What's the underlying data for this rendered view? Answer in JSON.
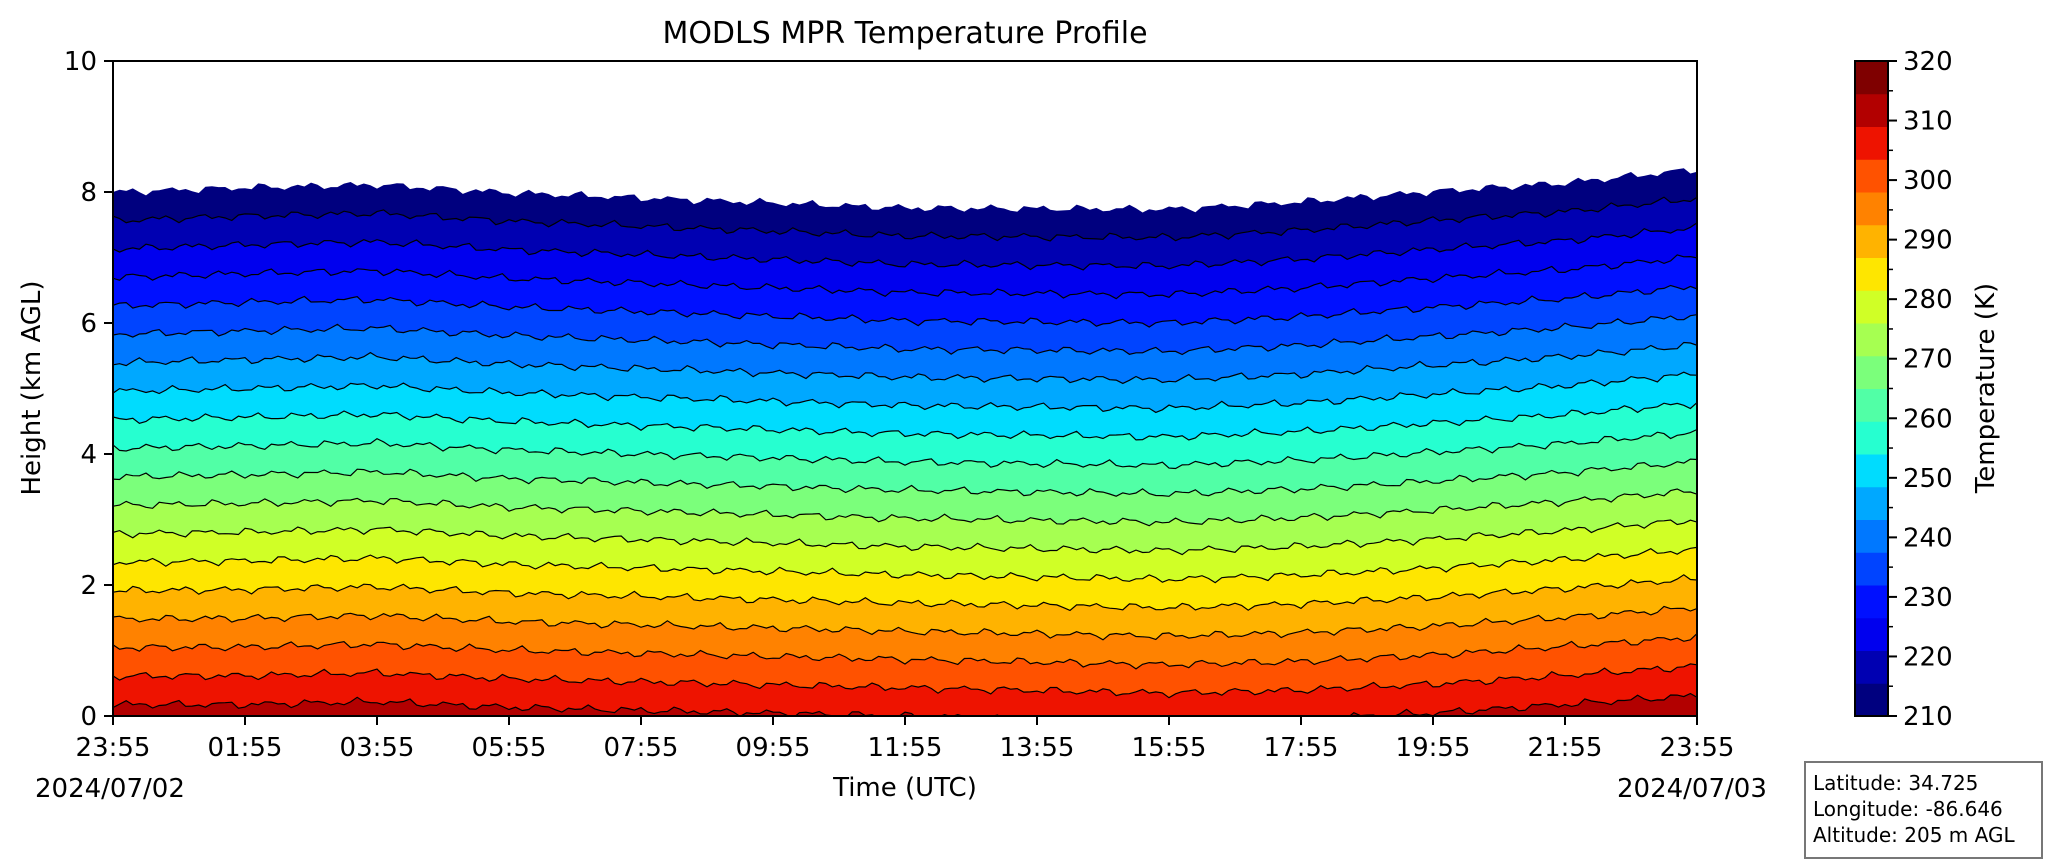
{
  "chart_data": {
    "type": "heatmap",
    "title": "MODLS MPR Temperature Profile",
    "xlabel": "Time (UTC)",
    "ylabel": "Height (km AGL)",
    "colorbar_label": "Temperature (K)",
    "x_ticks": [
      "23:55",
      "01:55",
      "03:55",
      "05:55",
      "07:55",
      "09:55",
      "11:55",
      "13:55",
      "15:55",
      "17:55",
      "19:55",
      "21:55",
      "23:55"
    ],
    "x_range_hours": [
      0,
      24
    ],
    "date_start": "2024/07/02",
    "date_end": "2024/07/03",
    "y_ticks": [
      0,
      2,
      4,
      6,
      8,
      10
    ],
    "ylim": [
      0,
      10
    ],
    "colorbar_ticks": [
      210,
      220,
      230,
      240,
      250,
      260,
      270,
      280,
      290,
      300,
      310,
      320
    ],
    "colorbar_range": [
      210,
      320
    ],
    "contour_step_K": 5,
    "colorbar_colors": [
      "#00007f",
      "#0000b2",
      "#0000ee",
      "#0010ff",
      "#0044ff",
      "#0078ff",
      "#00a8ff",
      "#00dcfe",
      "#26ffd0",
      "#51ffa6",
      "#7bff7b",
      "#a6ff51",
      "#d0ff26",
      "#fee600",
      "#ffb300",
      "#ff8200",
      "#ff5200",
      "#ee1300",
      "#b20000",
      "#7f0000"
    ],
    "surface_temperature_K": [
      302,
      302,
      302.5,
      301.5,
      301,
      300.5,
      300,
      299.5,
      299,
      299.5,
      300.5,
      302,
      303.5
    ],
    "lapse_rate_K_per_km": [
      11.5,
      11.4,
      11.4,
      11.45,
      11.5,
      11.55,
      11.6,
      11.55,
      11.5,
      11.4,
      11.3,
      11.3,
      11.2
    ],
    "annotation": {
      "latitude": "Latitude: 34.725",
      "longitude": "Longitude: -86.646",
      "altitude": "Altitude: 205 m AGL"
    }
  }
}
